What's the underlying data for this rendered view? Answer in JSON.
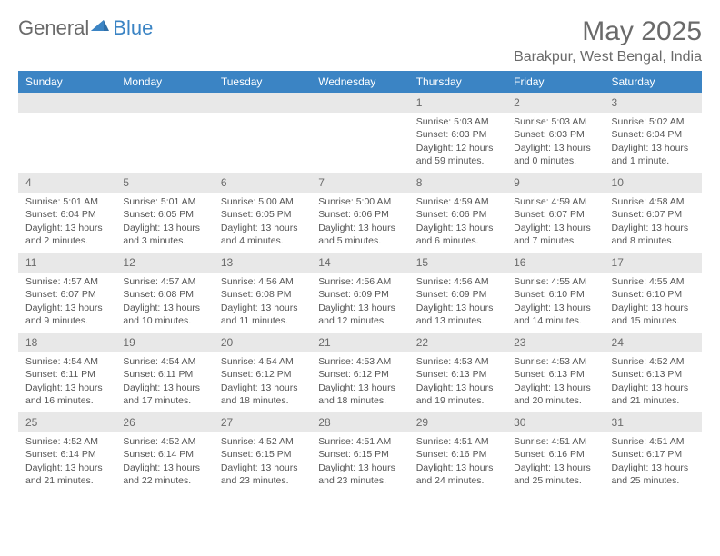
{
  "brand": {
    "part1": "General",
    "part2": "Blue"
  },
  "title": "May 2025",
  "location": "Barakpur, West Bengal, India",
  "colors": {
    "header_bg": "#3b84c4",
    "daynum_bg": "#e8e8e8",
    "text": "#555555",
    "title_text": "#6a6a6a"
  },
  "weekdays": [
    "Sunday",
    "Monday",
    "Tuesday",
    "Wednesday",
    "Thursday",
    "Friday",
    "Saturday"
  ],
  "weeks": [
    [
      null,
      null,
      null,
      null,
      {
        "n": "1",
        "sr": "Sunrise: 5:03 AM",
        "ss": "Sunset: 6:03 PM",
        "dl1": "Daylight: 12 hours",
        "dl2": "and 59 minutes."
      },
      {
        "n": "2",
        "sr": "Sunrise: 5:03 AM",
        "ss": "Sunset: 6:03 PM",
        "dl1": "Daylight: 13 hours",
        "dl2": "and 0 minutes."
      },
      {
        "n": "3",
        "sr": "Sunrise: 5:02 AM",
        "ss": "Sunset: 6:04 PM",
        "dl1": "Daylight: 13 hours",
        "dl2": "and 1 minute."
      }
    ],
    [
      {
        "n": "4",
        "sr": "Sunrise: 5:01 AM",
        "ss": "Sunset: 6:04 PM",
        "dl1": "Daylight: 13 hours",
        "dl2": "and 2 minutes."
      },
      {
        "n": "5",
        "sr": "Sunrise: 5:01 AM",
        "ss": "Sunset: 6:05 PM",
        "dl1": "Daylight: 13 hours",
        "dl2": "and 3 minutes."
      },
      {
        "n": "6",
        "sr": "Sunrise: 5:00 AM",
        "ss": "Sunset: 6:05 PM",
        "dl1": "Daylight: 13 hours",
        "dl2": "and 4 minutes."
      },
      {
        "n": "7",
        "sr": "Sunrise: 5:00 AM",
        "ss": "Sunset: 6:06 PM",
        "dl1": "Daylight: 13 hours",
        "dl2": "and 5 minutes."
      },
      {
        "n": "8",
        "sr": "Sunrise: 4:59 AM",
        "ss": "Sunset: 6:06 PM",
        "dl1": "Daylight: 13 hours",
        "dl2": "and 6 minutes."
      },
      {
        "n": "9",
        "sr": "Sunrise: 4:59 AM",
        "ss": "Sunset: 6:07 PM",
        "dl1": "Daylight: 13 hours",
        "dl2": "and 7 minutes."
      },
      {
        "n": "10",
        "sr": "Sunrise: 4:58 AM",
        "ss": "Sunset: 6:07 PM",
        "dl1": "Daylight: 13 hours",
        "dl2": "and 8 minutes."
      }
    ],
    [
      {
        "n": "11",
        "sr": "Sunrise: 4:57 AM",
        "ss": "Sunset: 6:07 PM",
        "dl1": "Daylight: 13 hours",
        "dl2": "and 9 minutes."
      },
      {
        "n": "12",
        "sr": "Sunrise: 4:57 AM",
        "ss": "Sunset: 6:08 PM",
        "dl1": "Daylight: 13 hours",
        "dl2": "and 10 minutes."
      },
      {
        "n": "13",
        "sr": "Sunrise: 4:56 AM",
        "ss": "Sunset: 6:08 PM",
        "dl1": "Daylight: 13 hours",
        "dl2": "and 11 minutes."
      },
      {
        "n": "14",
        "sr": "Sunrise: 4:56 AM",
        "ss": "Sunset: 6:09 PM",
        "dl1": "Daylight: 13 hours",
        "dl2": "and 12 minutes."
      },
      {
        "n": "15",
        "sr": "Sunrise: 4:56 AM",
        "ss": "Sunset: 6:09 PM",
        "dl1": "Daylight: 13 hours",
        "dl2": "and 13 minutes."
      },
      {
        "n": "16",
        "sr": "Sunrise: 4:55 AM",
        "ss": "Sunset: 6:10 PM",
        "dl1": "Daylight: 13 hours",
        "dl2": "and 14 minutes."
      },
      {
        "n": "17",
        "sr": "Sunrise: 4:55 AM",
        "ss": "Sunset: 6:10 PM",
        "dl1": "Daylight: 13 hours",
        "dl2": "and 15 minutes."
      }
    ],
    [
      {
        "n": "18",
        "sr": "Sunrise: 4:54 AM",
        "ss": "Sunset: 6:11 PM",
        "dl1": "Daylight: 13 hours",
        "dl2": "and 16 minutes."
      },
      {
        "n": "19",
        "sr": "Sunrise: 4:54 AM",
        "ss": "Sunset: 6:11 PM",
        "dl1": "Daylight: 13 hours",
        "dl2": "and 17 minutes."
      },
      {
        "n": "20",
        "sr": "Sunrise: 4:54 AM",
        "ss": "Sunset: 6:12 PM",
        "dl1": "Daylight: 13 hours",
        "dl2": "and 18 minutes."
      },
      {
        "n": "21",
        "sr": "Sunrise: 4:53 AM",
        "ss": "Sunset: 6:12 PM",
        "dl1": "Daylight: 13 hours",
        "dl2": "and 18 minutes."
      },
      {
        "n": "22",
        "sr": "Sunrise: 4:53 AM",
        "ss": "Sunset: 6:13 PM",
        "dl1": "Daylight: 13 hours",
        "dl2": "and 19 minutes."
      },
      {
        "n": "23",
        "sr": "Sunrise: 4:53 AM",
        "ss": "Sunset: 6:13 PM",
        "dl1": "Daylight: 13 hours",
        "dl2": "and 20 minutes."
      },
      {
        "n": "24",
        "sr": "Sunrise: 4:52 AM",
        "ss": "Sunset: 6:13 PM",
        "dl1": "Daylight: 13 hours",
        "dl2": "and 21 minutes."
      }
    ],
    [
      {
        "n": "25",
        "sr": "Sunrise: 4:52 AM",
        "ss": "Sunset: 6:14 PM",
        "dl1": "Daylight: 13 hours",
        "dl2": "and 21 minutes."
      },
      {
        "n": "26",
        "sr": "Sunrise: 4:52 AM",
        "ss": "Sunset: 6:14 PM",
        "dl1": "Daylight: 13 hours",
        "dl2": "and 22 minutes."
      },
      {
        "n": "27",
        "sr": "Sunrise: 4:52 AM",
        "ss": "Sunset: 6:15 PM",
        "dl1": "Daylight: 13 hours",
        "dl2": "and 23 minutes."
      },
      {
        "n": "28",
        "sr": "Sunrise: 4:51 AM",
        "ss": "Sunset: 6:15 PM",
        "dl1": "Daylight: 13 hours",
        "dl2": "and 23 minutes."
      },
      {
        "n": "29",
        "sr": "Sunrise: 4:51 AM",
        "ss": "Sunset: 6:16 PM",
        "dl1": "Daylight: 13 hours",
        "dl2": "and 24 minutes."
      },
      {
        "n": "30",
        "sr": "Sunrise: 4:51 AM",
        "ss": "Sunset: 6:16 PM",
        "dl1": "Daylight: 13 hours",
        "dl2": "and 25 minutes."
      },
      {
        "n": "31",
        "sr": "Sunrise: 4:51 AM",
        "ss": "Sunset: 6:17 PM",
        "dl1": "Daylight: 13 hours",
        "dl2": "and 25 minutes."
      }
    ]
  ]
}
